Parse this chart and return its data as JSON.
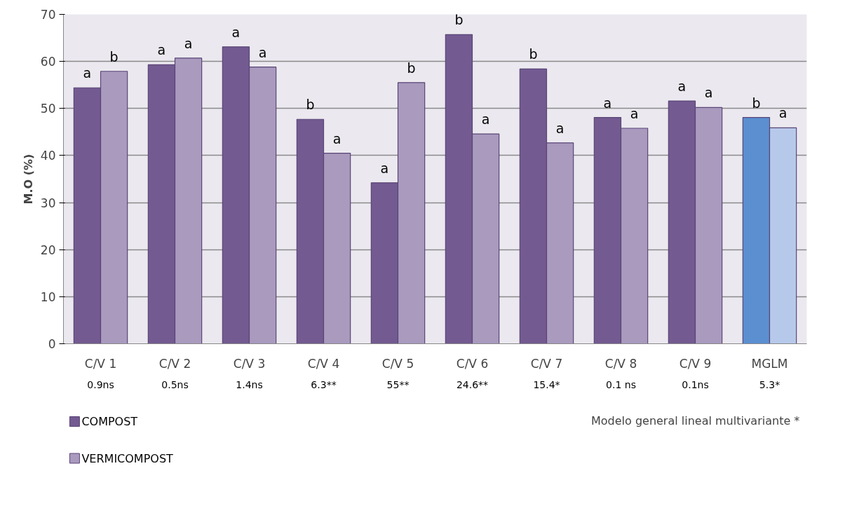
{
  "chart_data": {
    "type": "bar",
    "ylabel": "M.O (%)",
    "categories": [
      "C/V 1",
      "C/V 2",
      "C/V 3",
      "C/V 4",
      "C/V 5",
      "C/V 6",
      "C/V 7",
      "C/V 8",
      "C/V 9",
      "MGLM"
    ],
    "series": [
      {
        "name": "COMPOST",
        "colors": [
          "#735a91",
          "#735a91",
          "#735a91",
          "#735a91",
          "#735a91",
          "#735a91",
          "#735a91",
          "#735a91",
          "#735a91",
          "#5b8fd0"
        ],
        "values": [
          54.4,
          59.3,
          63.1,
          47.7,
          34.2,
          65.7,
          58.4,
          48.1,
          51.6,
          48.1
        ],
        "value_labels": [
          "a",
          "a",
          "a",
          "b",
          "a",
          "b",
          "b",
          "a",
          "a",
          "b"
        ]
      },
      {
        "name": "VERMICOMPOST",
        "colors": [
          "#a99abe",
          "#a99abe",
          "#a99abe",
          "#a99abe",
          "#a99abe",
          "#a99abe",
          "#a99abe",
          "#a99abe",
          "#a99abe",
          "#b7c9ea"
        ],
        "values": [
          57.9,
          60.7,
          58.8,
          40.5,
          55.5,
          44.6,
          42.7,
          45.8,
          50.2,
          45.9
        ],
        "value_labels": [
          "b",
          "a",
          "a",
          "a",
          "b",
          "a",
          "a",
          "a",
          "a",
          "a"
        ]
      }
    ],
    "ylim": [
      0,
      70
    ],
    "yticks": [
      0,
      10,
      20,
      30,
      40,
      50,
      60,
      70
    ],
    "grid": "y",
    "legend": "bottom left",
    "annotations": [
      "0.9ns",
      "0.5ns",
      "1.4ns",
      "6.3**",
      "55**",
      "24.6**",
      "15.4*",
      "0.1 ns",
      "0.1ns",
      "5.3*",
      "Modelo  general lineal  multivariante *"
    ]
  }
}
